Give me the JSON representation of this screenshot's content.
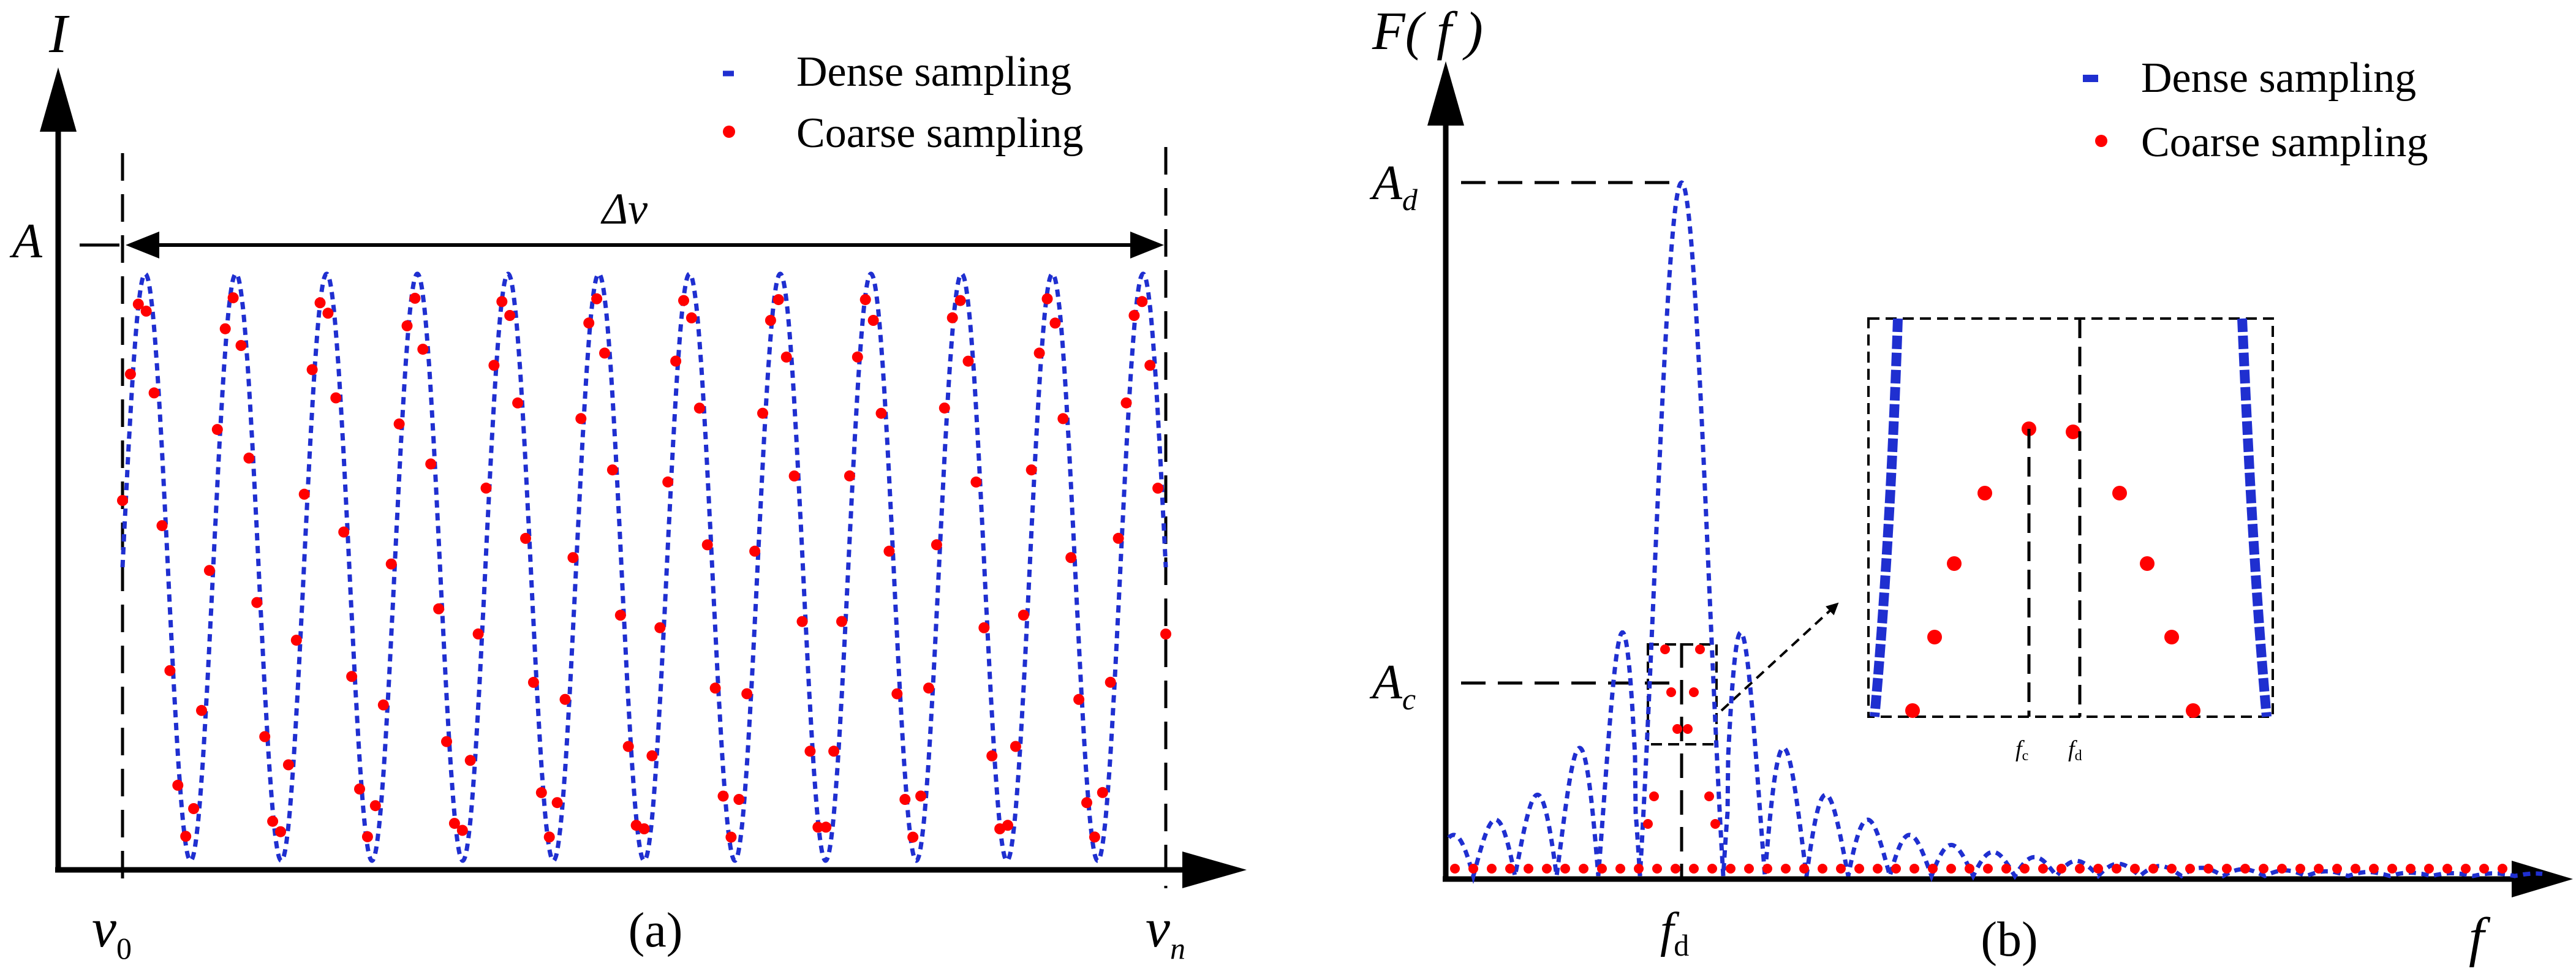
{
  "colors": {
    "dense": "#1f2fd0",
    "coarse": "#ff0000",
    "axis": "#000000"
  },
  "chart_data": [
    {
      "panel": "a",
      "type": "scatter",
      "caption": "(a)",
      "ylabel": "I",
      "xlabel_start": "ν",
      "xlabel_start_sub": "0",
      "xlabel_end": "ν",
      "xlabel_end_sub": "n",
      "amplitude_label": "A",
      "span_label": "Δν",
      "legend": [
        "Dense sampling",
        "Coarse sampling"
      ],
      "legend_position": "top-right",
      "xlim": [
        0,
        12
      ],
      "ylim": [
        -1.05,
        1.2
      ],
      "cycles": 11.5,
      "amplitude": 1.0,
      "coarse_samples_per_cycle": 11.5
    },
    {
      "panel": "b",
      "type": "line",
      "caption": "(b)",
      "ylabel": "F( f )",
      "xlabel": "f",
      "peak_dense_label": "A",
      "peak_dense_sub": "d",
      "peak_coarse_label": "A",
      "peak_coarse_sub": "c",
      "fd_label": "f",
      "fd_sub": "d",
      "legend": [
        "Dense sampling",
        "Coarse sampling"
      ],
      "legend_position": "top-right",
      "xlim": [
        0,
        5.0
      ],
      "ylim": [
        0,
        1.1
      ],
      "dense_peak_freq": 1.0,
      "dense_peak_height": 1.0,
      "coarse_peak_height": 0.28,
      "inset": {
        "fc_label": "f",
        "fc_sub": "c",
        "fd_label": "f",
        "fd_sub": "d"
      }
    }
  ]
}
